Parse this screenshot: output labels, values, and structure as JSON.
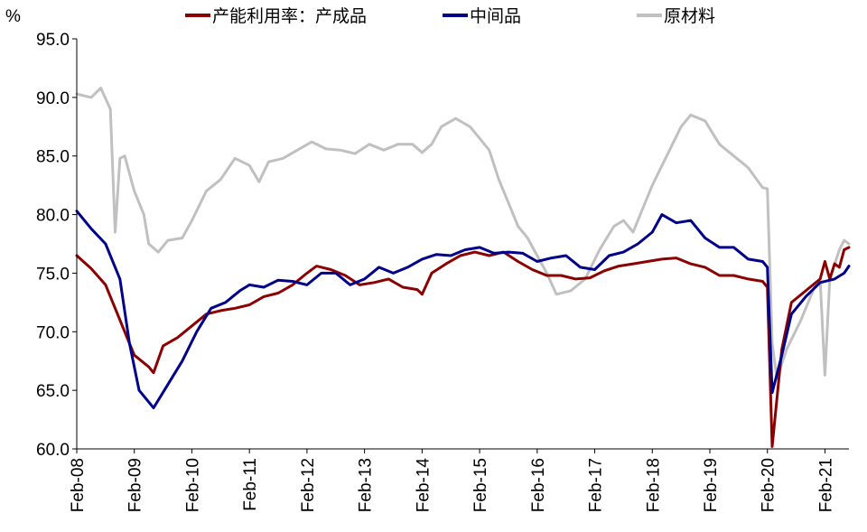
{
  "chart_data": {
    "type": "line",
    "ylabel": "%",
    "ylim": [
      60,
      95
    ],
    "yticks": [
      "95.0",
      "90.0",
      "85.0",
      "80.0",
      "75.0",
      "70.0",
      "65.0",
      "60.0"
    ],
    "xlim": [
      "2008-02",
      "2021-07"
    ],
    "xticks": [
      "Feb-08",
      "Feb-09",
      "Feb-10",
      "Feb-11",
      "Feb-12",
      "Feb-13",
      "Feb-14",
      "Feb-15",
      "Feb-16",
      "Feb-17",
      "Feb-18",
      "Feb-19",
      "Feb-20",
      "Feb-21"
    ],
    "legend_position": "top",
    "grid": false,
    "series": [
      {
        "name": "产能利用率：产成品",
        "color": "#8B0000",
        "points": [
          [
            "2008-02",
            76.5
          ],
          [
            "2008-05",
            75.4
          ],
          [
            "2008-08",
            74.0
          ],
          [
            "2008-11",
            71.0
          ],
          [
            "2009-01",
            69.0
          ],
          [
            "2009-02",
            68.0
          ],
          [
            "2009-05",
            67.0
          ],
          [
            "2009-06",
            66.5
          ],
          [
            "2009-08",
            68.8
          ],
          [
            "2009-11",
            69.5
          ],
          [
            "2010-02",
            70.5
          ],
          [
            "2010-05",
            71.5
          ],
          [
            "2010-08",
            71.8
          ],
          [
            "2010-11",
            72.0
          ],
          [
            "2011-02",
            72.3
          ],
          [
            "2011-05",
            73.0
          ],
          [
            "2011-08",
            73.3
          ],
          [
            "2011-11",
            74.0
          ],
          [
            "2012-02",
            75.0
          ],
          [
            "2012-04",
            75.6
          ],
          [
            "2012-07",
            75.3
          ],
          [
            "2012-10",
            74.8
          ],
          [
            "2013-01",
            74.0
          ],
          [
            "2013-04",
            74.2
          ],
          [
            "2013-07",
            74.5
          ],
          [
            "2013-10",
            73.8
          ],
          [
            "2014-01",
            73.6
          ],
          [
            "2014-02",
            73.2
          ],
          [
            "2014-04",
            75.0
          ],
          [
            "2014-07",
            75.8
          ],
          [
            "2014-10",
            76.5
          ],
          [
            "2015-01",
            76.8
          ],
          [
            "2015-04",
            76.5
          ],
          [
            "2015-07",
            76.8
          ],
          [
            "2015-10",
            76.0
          ],
          [
            "2016-01",
            75.3
          ],
          [
            "2016-04",
            74.8
          ],
          [
            "2016-07",
            74.8
          ],
          [
            "2016-10",
            74.5
          ],
          [
            "2017-01",
            74.6
          ],
          [
            "2017-04",
            75.2
          ],
          [
            "2017-07",
            75.6
          ],
          [
            "2017-10",
            75.8
          ],
          [
            "2018-01",
            76.0
          ],
          [
            "2018-04",
            76.2
          ],
          [
            "2018-07",
            76.3
          ],
          [
            "2018-10",
            75.8
          ],
          [
            "2019-01",
            75.5
          ],
          [
            "2019-04",
            74.8
          ],
          [
            "2019-07",
            74.8
          ],
          [
            "2019-10",
            74.5
          ],
          [
            "2020-01",
            74.3
          ],
          [
            "2020-02",
            73.8
          ],
          [
            "2020-03",
            60.2
          ],
          [
            "2020-05",
            68.5
          ],
          [
            "2020-07",
            72.5
          ],
          [
            "2020-10",
            73.5
          ],
          [
            "2021-01",
            74.5
          ],
          [
            "2021-02",
            76.0
          ],
          [
            "2021-03",
            74.5
          ],
          [
            "2021-04",
            75.8
          ],
          [
            "2021-05",
            75.5
          ],
          [
            "2021-06",
            77.0
          ],
          [
            "2021-07",
            77.2
          ]
        ]
      },
      {
        "name": "中间品",
        "color": "#00008B",
        "points": [
          [
            "2008-02",
            80.3
          ],
          [
            "2008-05",
            78.8
          ],
          [
            "2008-08",
            77.5
          ],
          [
            "2008-11",
            74.5
          ],
          [
            "2009-01",
            69.0
          ],
          [
            "2009-03",
            65.0
          ],
          [
            "2009-06",
            63.5
          ],
          [
            "2009-09",
            65.5
          ],
          [
            "2009-12",
            67.5
          ],
          [
            "2010-03",
            70.0
          ],
          [
            "2010-06",
            72.0
          ],
          [
            "2010-09",
            72.5
          ],
          [
            "2010-12",
            73.5
          ],
          [
            "2011-02",
            74.0
          ],
          [
            "2011-05",
            73.8
          ],
          [
            "2011-08",
            74.4
          ],
          [
            "2011-11",
            74.3
          ],
          [
            "2012-02",
            74.0
          ],
          [
            "2012-05",
            75.0
          ],
          [
            "2012-08",
            75.0
          ],
          [
            "2012-11",
            74.0
          ],
          [
            "2013-02",
            74.5
          ],
          [
            "2013-05",
            75.5
          ],
          [
            "2013-08",
            75.0
          ],
          [
            "2013-11",
            75.5
          ],
          [
            "2014-02",
            76.2
          ],
          [
            "2014-05",
            76.6
          ],
          [
            "2014-08",
            76.5
          ],
          [
            "2014-11",
            77.0
          ],
          [
            "2015-02",
            77.2
          ],
          [
            "2015-05",
            76.7
          ],
          [
            "2015-08",
            76.8
          ],
          [
            "2015-11",
            76.7
          ],
          [
            "2016-02",
            76.0
          ],
          [
            "2016-05",
            76.3
          ],
          [
            "2016-08",
            76.5
          ],
          [
            "2016-11",
            75.5
          ],
          [
            "2017-02",
            75.3
          ],
          [
            "2017-05",
            76.5
          ],
          [
            "2017-08",
            76.8
          ],
          [
            "2017-11",
            77.5
          ],
          [
            "2018-02",
            78.5
          ],
          [
            "2018-04",
            80.0
          ],
          [
            "2018-07",
            79.3
          ],
          [
            "2018-10",
            79.5
          ],
          [
            "2019-01",
            78.0
          ],
          [
            "2019-04",
            77.2
          ],
          [
            "2019-07",
            77.2
          ],
          [
            "2019-10",
            76.2
          ],
          [
            "2020-01",
            76.0
          ],
          [
            "2020-02",
            75.5
          ],
          [
            "2020-03",
            64.8
          ],
          [
            "2020-05",
            68.0
          ],
          [
            "2020-07",
            71.5
          ],
          [
            "2020-10",
            73.0
          ],
          [
            "2021-01",
            74.2
          ],
          [
            "2021-04",
            74.5
          ],
          [
            "2021-06",
            75.0
          ],
          [
            "2021-07",
            75.6
          ]
        ]
      },
      {
        "name": "原材料",
        "color": "#C0C0C0",
        "points": [
          [
            "2008-02",
            90.3
          ],
          [
            "2008-05",
            90.0
          ],
          [
            "2008-07",
            90.8
          ],
          [
            "2008-09",
            89.0
          ],
          [
            "2008-10",
            78.5
          ],
          [
            "2008-11",
            84.8
          ],
          [
            "2008-12",
            85.0
          ],
          [
            "2009-02",
            82.0
          ],
          [
            "2009-04",
            80.0
          ],
          [
            "2009-05",
            77.5
          ],
          [
            "2009-07",
            76.8
          ],
          [
            "2009-09",
            77.8
          ],
          [
            "2009-12",
            78.0
          ],
          [
            "2010-02",
            79.5
          ],
          [
            "2010-05",
            82.0
          ],
          [
            "2010-08",
            83.0
          ],
          [
            "2010-11",
            84.8
          ],
          [
            "2011-02",
            84.2
          ],
          [
            "2011-04",
            82.8
          ],
          [
            "2011-06",
            84.5
          ],
          [
            "2011-09",
            84.8
          ],
          [
            "2011-12",
            85.5
          ],
          [
            "2012-03",
            86.2
          ],
          [
            "2012-06",
            85.6
          ],
          [
            "2012-09",
            85.5
          ],
          [
            "2012-12",
            85.2
          ],
          [
            "2013-03",
            86.0
          ],
          [
            "2013-06",
            85.5
          ],
          [
            "2013-09",
            86.0
          ],
          [
            "2013-12",
            86.0
          ],
          [
            "2014-02",
            85.3
          ],
          [
            "2014-04",
            86.0
          ],
          [
            "2014-06",
            87.5
          ],
          [
            "2014-09",
            88.2
          ],
          [
            "2014-12",
            87.5
          ],
          [
            "2015-03",
            86.0
          ],
          [
            "2015-04",
            85.5
          ],
          [
            "2015-06",
            83.0
          ],
          [
            "2015-08",
            81.0
          ],
          [
            "2015-10",
            79.0
          ],
          [
            "2015-12",
            78.0
          ],
          [
            "2016-02",
            76.5
          ],
          [
            "2016-04",
            75.0
          ],
          [
            "2016-06",
            73.2
          ],
          [
            "2016-09",
            73.5
          ],
          [
            "2016-12",
            74.5
          ],
          [
            "2017-03",
            77.0
          ],
          [
            "2017-06",
            79.0
          ],
          [
            "2017-08",
            79.5
          ],
          [
            "2017-10",
            78.5
          ],
          [
            "2017-12",
            80.5
          ],
          [
            "2018-02",
            82.5
          ],
          [
            "2018-05",
            85.0
          ],
          [
            "2018-08",
            87.5
          ],
          [
            "2018-10",
            88.5
          ],
          [
            "2019-01",
            88.0
          ],
          [
            "2019-04",
            86.0
          ],
          [
            "2019-07",
            85.0
          ],
          [
            "2019-10",
            84.0
          ],
          [
            "2020-01",
            82.3
          ],
          [
            "2020-02",
            82.2
          ],
          [
            "2020-03",
            69.0
          ],
          [
            "2020-04",
            66.0
          ],
          [
            "2020-06",
            68.5
          ],
          [
            "2020-09",
            71.0
          ],
          [
            "2020-12",
            74.0
          ],
          [
            "2021-01",
            74.5
          ],
          [
            "2021-02",
            66.3
          ],
          [
            "2021-03",
            74.5
          ],
          [
            "2021-05",
            77.0
          ],
          [
            "2021-06",
            77.8
          ],
          [
            "2021-07",
            77.5
          ]
        ]
      }
    ]
  }
}
